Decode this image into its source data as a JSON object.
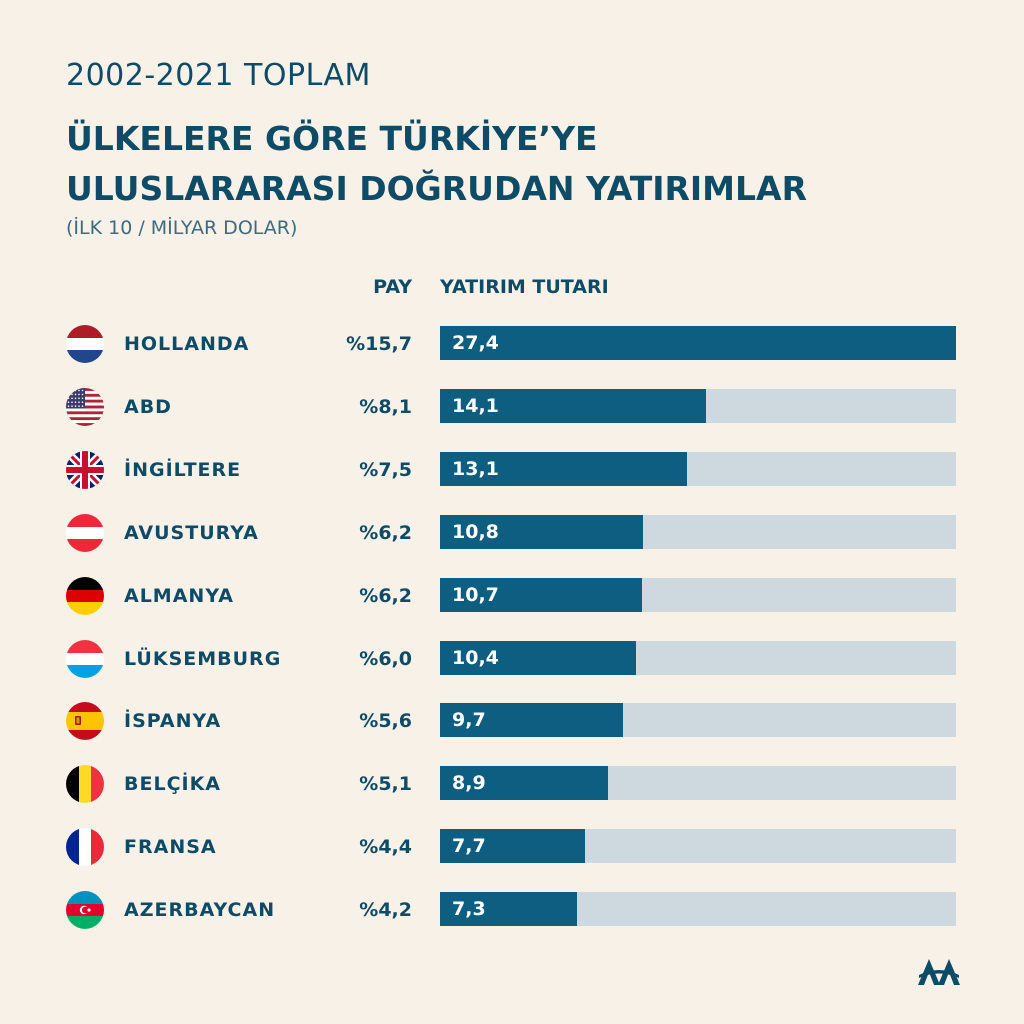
{
  "header": {
    "year_line": "2002-2021 TOPLAM",
    "title_line1": "ÜLKELERE GÖRE TÜRKİYE’YE",
    "title_line2": "ULUSLARARASI DOĞRUDAN YATIRIMLAR",
    "subtitle": "(İLK 10 / MİLYAR DOLAR)"
  },
  "columns": {
    "share_label": "PAY",
    "amount_label": "YATIRIM TUTARI"
  },
  "chart_data": {
    "type": "bar",
    "orientation": "horizontal",
    "title": "ÜLKELERE GÖRE TÜRKİYE’YE ULUSLARARASI DOĞRUDAN YATIRIMLAR",
    "subtitle": "(İLK 10 / MİLYAR DOLAR)",
    "xlim": [
      0,
      27.4
    ],
    "grid": false,
    "categories": [
      "HOLLANDA",
      "ABD",
      "İNGİLTERE",
      "AVUSTURYA",
      "ALMANYA",
      "LÜKSEMBURG",
      "İSPANYA",
      "BELÇİKA",
      "FRANSA",
      "AZERBAYCAN"
    ],
    "values": [
      27.4,
      14.1,
      13.1,
      10.8,
      10.7,
      10.4,
      9.7,
      8.9,
      7.7,
      7.3
    ],
    "value_labels": [
      "27,4",
      "14,1",
      "13,1",
      "10,8",
      "10,7",
      "10,4",
      "9,7",
      "8,9",
      "7,7",
      "7,3"
    ],
    "shares": [
      "%15,7",
      "%8,1",
      "%7,5",
      "%6,2",
      "%6,2",
      "%6,0",
      "%5,6",
      "%5,1",
      "%4,4",
      "%4,2"
    ],
    "flags": [
      "netherlands-flag-icon",
      "usa-flag-icon",
      "uk-flag-icon",
      "austria-flag-icon",
      "germany-flag-icon",
      "luxembourg-flag-icon",
      "spain-flag-icon",
      "belgium-flag-icon",
      "france-flag-icon",
      "azerbaijan-flag-icon"
    ]
  },
  "colors": {
    "background": "#f8f1e8",
    "text": "#0d4b67",
    "bar": "#0d5e80",
    "track": "#cdd9df"
  },
  "logo": {
    "icon": "aa-logo-icon"
  }
}
